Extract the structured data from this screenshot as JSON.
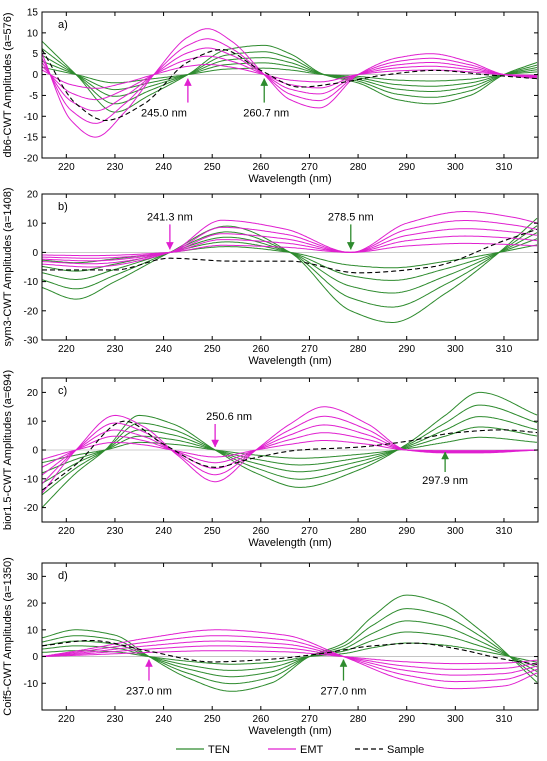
{
  "colors": {
    "TEN": "#2e8b2e",
    "EMT": "#e020d0",
    "Sample": "#000000"
  },
  "legend": {
    "items": [
      "TEN",
      "EMT",
      "Sample"
    ],
    "placement": "bottom-center"
  },
  "chart_data": [
    {
      "type": "line",
      "panel_label": "a)",
      "xlabel": "Wavelength (nm)",
      "ylabel": "db6-CWT Amplitudes (a=576)",
      "xlim": [
        215,
        317
      ],
      "ylim": [
        -20,
        15
      ],
      "xticks": [
        220,
        230,
        240,
        250,
        260,
        270,
        280,
        290,
        300,
        310
      ],
      "yticks": [
        -20,
        -15,
        -10,
        -5,
        0,
        5,
        10,
        15
      ],
      "grid": false,
      "annotations": [
        {
          "text": "245.0 nm",
          "x": 245.0,
          "color": "EMT"
        },
        {
          "text": "260.7 nm",
          "x": 260.7,
          "color": "TEN"
        }
      ],
      "series": [
        {
          "name": "TEN",
          "x": [
            215,
            222,
            230,
            237,
            245,
            253,
            260.7,
            266,
            273,
            280,
            288,
            295,
            303,
            310,
            317
          ],
          "values": [
            8,
            0,
            -9,
            -5,
            0,
            6,
            7,
            5,
            0,
            -2,
            -6,
            -7,
            -5,
            0,
            3
          ]
        },
        {
          "name": "EMT",
          "x": [
            215,
            221,
            226,
            232,
            238,
            245,
            249,
            254,
            260.7,
            266,
            272,
            280,
            288,
            295,
            303,
            310,
            317
          ],
          "values": [
            5,
            -11,
            -15,
            -9,
            0,
            9,
            11,
            8,
            0,
            -6,
            -8,
            0,
            4,
            5,
            3,
            0,
            -1
          ]
        },
        {
          "name": "Sample",
          "x": [
            215,
            222,
            228,
            236,
            245,
            252,
            260,
            268,
            276,
            286,
            296,
            306,
            317
          ],
          "values": [
            6,
            -7,
            -11,
            -7,
            3,
            6,
            1,
            -3,
            -2,
            0,
            1,
            0,
            -1
          ]
        }
      ]
    },
    {
      "type": "line",
      "panel_label": "b)",
      "xlabel": "Wavelength (nm)",
      "ylabel": "sym3-CWT Amplitudes (a=1408)",
      "xlim": [
        215,
        317
      ],
      "ylim": [
        -30,
        20
      ],
      "xticks": [
        220,
        230,
        240,
        250,
        260,
        270,
        280,
        290,
        300,
        310
      ],
      "yticks": [
        -30,
        -20,
        -10,
        0,
        10,
        20
      ],
      "grid": false,
      "annotations": [
        {
          "text": "241.3 nm",
          "x": 241.3,
          "color": "EMT"
        },
        {
          "text": "278.5 nm",
          "x": 278.5,
          "color": "TEN"
        }
      ],
      "series": [
        {
          "name": "TEN",
          "x": [
            215,
            222,
            230,
            241.3,
            253,
            266,
            278.5,
            287,
            298,
            309,
            317
          ],
          "values": [
            -12,
            -16,
            -10,
            0,
            9,
            0,
            -20,
            -24,
            -14,
            0,
            12
          ]
        },
        {
          "name": "EMT",
          "x": [
            215,
            225,
            241.3,
            252,
            265,
            278.5,
            290,
            302,
            312,
            317
          ],
          "values": [
            -4,
            -5,
            0,
            11,
            8,
            0,
            10,
            14,
            12,
            10
          ]
        },
        {
          "name": "Sample",
          "x": [
            215,
            230,
            241.3,
            254,
            266,
            280,
            295,
            310,
            317
          ],
          "values": [
            -6,
            -6,
            -2,
            -3,
            -3,
            -7,
            -5,
            4,
            8
          ]
        }
      ]
    },
    {
      "type": "line",
      "panel_label": "c)",
      "xlabel": "Wavelength (nm)",
      "ylabel": "bior1.5-CWT Amplitudes (a=694)",
      "xlim": [
        215,
        317
      ],
      "ylim": [
        -25,
        25
      ],
      "xticks": [
        220,
        230,
        240,
        250,
        260,
        270,
        280,
        290,
        300,
        310
      ],
      "yticks": [
        -20,
        -10,
        0,
        10,
        20
      ],
      "grid": false,
      "annotations": [
        {
          "text": "250.6 nm",
          "x": 250.6,
          "color": "EMT"
        },
        {
          "text": "297.9 nm",
          "x": 297.9,
          "color": "TEN"
        }
      ],
      "series": [
        {
          "name": "TEN",
          "x": [
            215,
            222,
            228,
            235,
            242,
            250.6,
            259,
            268,
            280,
            290,
            297.9,
            305,
            317
          ],
          "values": [
            -20,
            -8,
            0,
            12,
            9,
            0,
            -8,
            -13,
            -7,
            2,
            12,
            20,
            12
          ]
        },
        {
          "name": "EMT",
          "x": [
            215,
            222,
            230,
            236,
            243,
            250.6,
            259,
            266,
            273,
            282,
            290,
            297.9,
            305,
            317
          ],
          "values": [
            -15,
            0,
            12,
            8,
            -2,
            -11,
            0,
            9,
            15,
            9,
            0,
            -1,
            -1,
            0
          ]
        },
        {
          "name": "Sample",
          "x": [
            215,
            222,
            232,
            240,
            250.6,
            258,
            268,
            280,
            290,
            300,
            310,
            317
          ],
          "values": [
            -14,
            -5,
            10,
            2,
            -6,
            -3,
            0,
            1,
            3,
            6,
            7,
            6
          ]
        }
      ]
    },
    {
      "type": "line",
      "panel_label": "d)",
      "xlabel": "Wavelength (nm)",
      "ylabel": "Coif5-CWT Amplitudes (a=1350)",
      "xlim": [
        215,
        317
      ],
      "ylim": [
        -20,
        35
      ],
      "xticks": [
        220,
        230,
        240,
        250,
        260,
        270,
        280,
        290,
        300,
        310
      ],
      "yticks": [
        -10,
        0,
        10,
        20,
        30
      ],
      "grid": false,
      "annotations": [
        {
          "text": "237.0 nm",
          "x": 237.0,
          "color": "EMT"
        },
        {
          "text": "277.0 nm",
          "x": 277.0,
          "color": "TEN"
        }
      ],
      "series": [
        {
          "name": "TEN",
          "x": [
            215,
            222,
            230,
            237,
            245,
            254,
            262,
            270,
            277,
            283,
            290,
            297,
            305,
            317
          ],
          "values": [
            7,
            10,
            8,
            0,
            -8,
            -13,
            -10,
            0,
            5,
            15,
            23,
            20,
            10,
            -10
          ]
        },
        {
          "name": "EMT",
          "x": [
            215,
            225,
            237,
            251,
            265,
            277,
            290,
            300,
            310,
            317
          ],
          "values": [
            0,
            3,
            7,
            10,
            8,
            0,
            -9,
            -12,
            -11,
            -6
          ]
        },
        {
          "name": "Sample",
          "x": [
            215,
            225,
            237,
            250,
            262,
            272,
            283,
            292,
            300,
            310,
            317
          ],
          "values": [
            4,
            6,
            2,
            -2,
            -1,
            1,
            4,
            5,
            3,
            -1,
            -3
          ]
        }
      ]
    }
  ]
}
